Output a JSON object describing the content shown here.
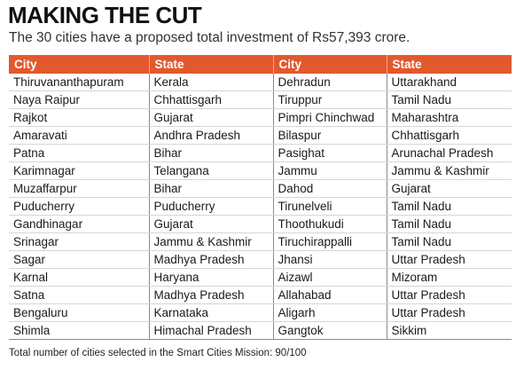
{
  "title": "MAKING THE CUT",
  "subtitle": "The 30 cities have a proposed total investment of Rs57,393 crore.",
  "footer": "Total number of cities selected in the Smart Cities Mission: 90/100",
  "colors": {
    "header_bg": "#e2592d",
    "header_text": "#ffffff"
  },
  "chart_data": {
    "type": "table",
    "columns": [
      "City",
      "State",
      "City",
      "State"
    ],
    "rows": [
      [
        "Thiruvananthapuram",
        "Kerala",
        "Dehradun",
        "Uttarakhand"
      ],
      [
        "Naya Raipur",
        "Chhattisgarh",
        "Tiruppur",
        "Tamil Nadu"
      ],
      [
        "Rajkot",
        "Gujarat",
        "Pimpri Chinchwad",
        "Maharashtra"
      ],
      [
        "Amaravati",
        "Andhra Pradesh",
        "Bilaspur",
        "Chhattisgarh"
      ],
      [
        "Patna",
        "Bihar",
        "Pasighat",
        "Arunachal Pradesh"
      ],
      [
        "Karimnagar",
        "Telangana",
        "Jammu",
        "Jammu & Kashmir"
      ],
      [
        "Muzaffarpur",
        "Bihar",
        "Dahod",
        "Gujarat"
      ],
      [
        "Puducherry",
        "Puducherry",
        "Tirunelveli",
        "Tamil Nadu"
      ],
      [
        "Gandhinagar",
        "Gujarat",
        "Thoothukudi",
        "Tamil Nadu"
      ],
      [
        "Srinagar",
        "Jammu & Kashmir",
        "Tiruchirappalli",
        "Tamil Nadu"
      ],
      [
        "Sagar",
        "Madhya Pradesh",
        "Jhansi",
        "Uttar Pradesh"
      ],
      [
        "Karnal",
        "Haryana",
        "Aizawl",
        "Mizoram"
      ],
      [
        "Satna",
        "Madhya Pradesh",
        "Allahabad",
        "Uttar Pradesh"
      ],
      [
        "Bengaluru",
        "Karnataka",
        "Aligarh",
        "Uttar Pradesh"
      ],
      [
        "Shimla",
        "Himachal Pradesh",
        "Gangtok",
        "Sikkim"
      ]
    ]
  }
}
